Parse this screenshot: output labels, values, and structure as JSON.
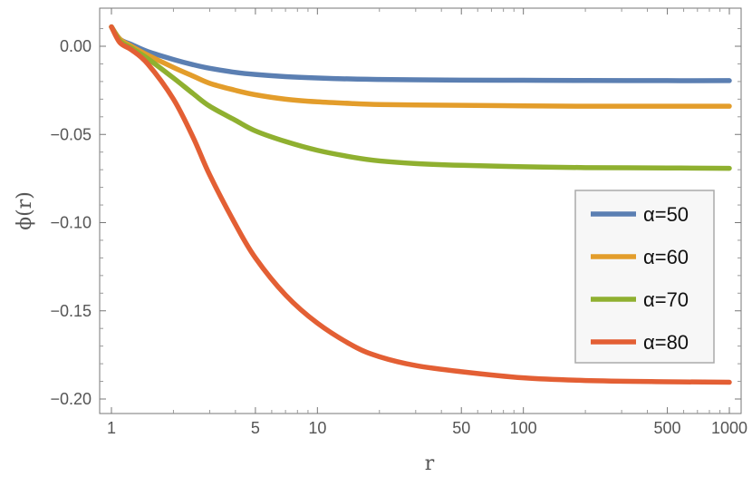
{
  "chart_data": {
    "type": "line",
    "xlabel": "r",
    "ylabel": "ϕ(r)",
    "x_scale": "log",
    "xlim": [
      1,
      1000
    ],
    "ylim": [
      -0.2,
      0.012
    ],
    "x_ticks": [
      1,
      5,
      10,
      50,
      100,
      500,
      1000
    ],
    "x_tick_labels": [
      "1",
      "5",
      "10",
      "50",
      "100",
      "500",
      "1000"
    ],
    "y_ticks": [
      0.0,
      -0.05,
      -0.1,
      -0.15,
      -0.2
    ],
    "y_tick_labels": [
      "0.00",
      "−0.05",
      "−0.10",
      "−0.15",
      "−0.20"
    ],
    "grid": false,
    "legend_position": "right",
    "x": [
      1,
      1.1,
      1.25,
      1.5,
      2,
      2.5,
      3,
      4,
      5,
      7,
      10,
      15,
      20,
      30,
      50,
      100,
      200,
      500,
      1000
    ],
    "series": [
      {
        "name": "α=50",
        "color": "#5b7fb2",
        "values": [
          0.011,
          0.004,
          0.001,
          -0.003,
          -0.0075,
          -0.0105,
          -0.0125,
          -0.0148,
          -0.016,
          -0.0172,
          -0.018,
          -0.0186,
          -0.0188,
          -0.019,
          -0.0192,
          -0.0193,
          -0.0194,
          -0.0195,
          -0.0195
        ]
      },
      {
        "name": "α=60",
        "color": "#e39d2b",
        "values": [
          0.011,
          0.004,
          0.0,
          -0.005,
          -0.012,
          -0.017,
          -0.021,
          -0.025,
          -0.0275,
          -0.03,
          -0.0315,
          -0.0325,
          -0.033,
          -0.0333,
          -0.0335,
          -0.0338,
          -0.034,
          -0.034,
          -0.034
        ]
      },
      {
        "name": "α=70",
        "color": "#8fb030",
        "values": [
          0.011,
          0.003,
          -0.001,
          -0.007,
          -0.018,
          -0.027,
          -0.034,
          -0.042,
          -0.048,
          -0.054,
          -0.059,
          -0.063,
          -0.065,
          -0.0665,
          -0.0675,
          -0.0683,
          -0.0688,
          -0.069,
          -0.0692
        ]
      },
      {
        "name": "α=80",
        "color": "#e35f34",
        "values": [
          0.011,
          0.002,
          -0.002,
          -0.01,
          -0.03,
          -0.052,
          -0.073,
          -0.101,
          -0.12,
          -0.141,
          -0.157,
          -0.17,
          -0.176,
          -0.181,
          -0.1845,
          -0.188,
          -0.1895,
          -0.1902,
          -0.1905
        ]
      }
    ]
  }
}
